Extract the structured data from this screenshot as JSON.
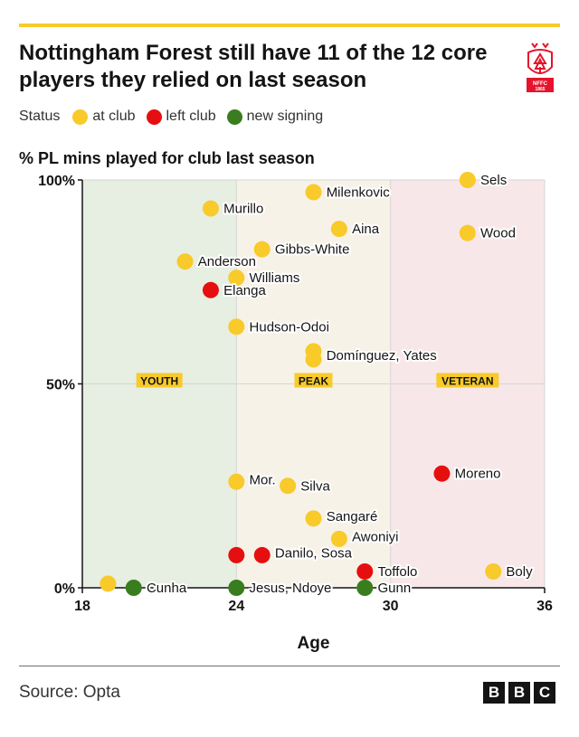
{
  "title": "Nottingham Forest still have 11 of the 12 core players they relied on last season",
  "legend": {
    "label": "Status",
    "items": [
      {
        "key": "at_club",
        "label": "at club",
        "color": "#f8ca2a"
      },
      {
        "key": "left_club",
        "label": "left club",
        "color": "#e60f0f"
      },
      {
        "key": "new_signing",
        "label": "new signing",
        "color": "#3a7d1e"
      }
    ]
  },
  "subtitle": "% PL mins played for club last season",
  "source": "Source: Opta",
  "logo": {
    "letters": [
      "B",
      "B",
      "C"
    ],
    "crest_icon": "nottingham-forest-crest-icon",
    "crest_color": "#e5132b"
  },
  "colors": {
    "accent_bar": "#f8ca2a",
    "youth_zone": "#e7eee2",
    "peak_zone": "#f7f2e8",
    "veteran_zone": "#f8e7e8",
    "zone_label_bg": "#f8ca2a",
    "text_halo": "#ffffff"
  },
  "chart_data": {
    "type": "scatter",
    "xlabel": "Age",
    "ylabel": "% PL mins played for club last season",
    "xlim": [
      18,
      36
    ],
    "ylim": [
      0,
      100
    ],
    "x_ticks": [
      18,
      24,
      30,
      36
    ],
    "y_ticks": [
      {
        "value": 0,
        "label": "0%"
      },
      {
        "value": 50,
        "label": "50%"
      },
      {
        "value": 100,
        "label": "100%"
      }
    ],
    "grid": true,
    "zones": [
      {
        "label": "YOUTH",
        "from": 18,
        "to": 24
      },
      {
        "label": "PEAK",
        "from": 24,
        "to": 30
      },
      {
        "label": "VETERAN",
        "from": 30,
        "to": 36
      }
    ],
    "points": [
      {
        "x": 33,
        "y": 100,
        "status": "at_club"
      },
      {
        "x": 27,
        "y": 97,
        "status": "at_club"
      },
      {
        "x": 23,
        "y": 93,
        "status": "at_club"
      },
      {
        "x": 28,
        "y": 88,
        "status": "at_club"
      },
      {
        "x": 33,
        "y": 87,
        "status": "at_club"
      },
      {
        "x": 25,
        "y": 83,
        "status": "at_club"
      },
      {
        "x": 22,
        "y": 80,
        "status": "at_club"
      },
      {
        "x": 24,
        "y": 76,
        "status": "at_club"
      },
      {
        "x": 23,
        "y": 73,
        "status": "left_club"
      },
      {
        "x": 24,
        "y": 64,
        "status": "at_club"
      },
      {
        "x": 27,
        "y": 58,
        "status": "at_club"
      },
      {
        "x": 27,
        "y": 56,
        "status": "at_club"
      },
      {
        "x": 32,
        "y": 28,
        "status": "left_club"
      },
      {
        "x": 24,
        "y": 26,
        "status": "at_club"
      },
      {
        "x": 26,
        "y": 25,
        "status": "at_club"
      },
      {
        "x": 27,
        "y": 17,
        "status": "at_club"
      },
      {
        "x": 28,
        "y": 12,
        "status": "at_club"
      },
      {
        "x": 24,
        "y": 8,
        "status": "left_club"
      },
      {
        "x": 25,
        "y": 8,
        "status": "left_club"
      },
      {
        "x": 29,
        "y": 4,
        "status": "left_club"
      },
      {
        "x": 34,
        "y": 4,
        "status": "at_club"
      },
      {
        "x": 19,
        "y": 1,
        "status": "at_club"
      },
      {
        "x": 20,
        "y": 0,
        "status": "new_signing"
      },
      {
        "x": 24,
        "y": 0,
        "status": "new_signing"
      },
      {
        "x": 29,
        "y": 0,
        "status": "new_signing"
      }
    ],
    "annotations": [
      {
        "text": "Sels",
        "x": 33.5,
        "y": 100
      },
      {
        "text": "Milenkovic",
        "x": 27.5,
        "y": 97
      },
      {
        "text": "Murillo",
        "x": 23.5,
        "y": 93
      },
      {
        "text": "Aina",
        "x": 28.5,
        "y": 88
      },
      {
        "text": "Wood",
        "x": 33.5,
        "y": 87
      },
      {
        "text": "Gibbs-White",
        "x": 25.5,
        "y": 83
      },
      {
        "text": "Anderson",
        "x": 22.5,
        "y": 80
      },
      {
        "text": "Williams",
        "x": 24.5,
        "y": 76
      },
      {
        "text": "Elanga",
        "x": 23.5,
        "y": 73
      },
      {
        "text": "Hudson-Odoi",
        "x": 24.5,
        "y": 64
      },
      {
        "text": "Domínguez, Yates",
        "x": 27.5,
        "y": 57
      },
      {
        "text": "Moreno",
        "x": 32.5,
        "y": 28
      },
      {
        "text": "Mor.",
        "x": 24.5,
        "y": 26.5
      },
      {
        "text": "Silva",
        "x": 26.5,
        "y": 25
      },
      {
        "text": "Sangaré",
        "x": 27.5,
        "y": 17.5
      },
      {
        "text": "Awoniyi",
        "x": 28.5,
        "y": 12.5
      },
      {
        "text": "Danilo, Sosa",
        "x": 25.5,
        "y": 8.5
      },
      {
        "text": "Toffolo",
        "x": 29.5,
        "y": 4
      },
      {
        "text": "Boly",
        "x": 34.5,
        "y": 4
      },
      {
        "text": "Cunha",
        "x": 20.5,
        "y": 0
      },
      {
        "text": "Jesus, Ndoye",
        "x": 24.5,
        "y": 0
      },
      {
        "text": "Gunn",
        "x": 29.5,
        "y": 0
      }
    ]
  }
}
